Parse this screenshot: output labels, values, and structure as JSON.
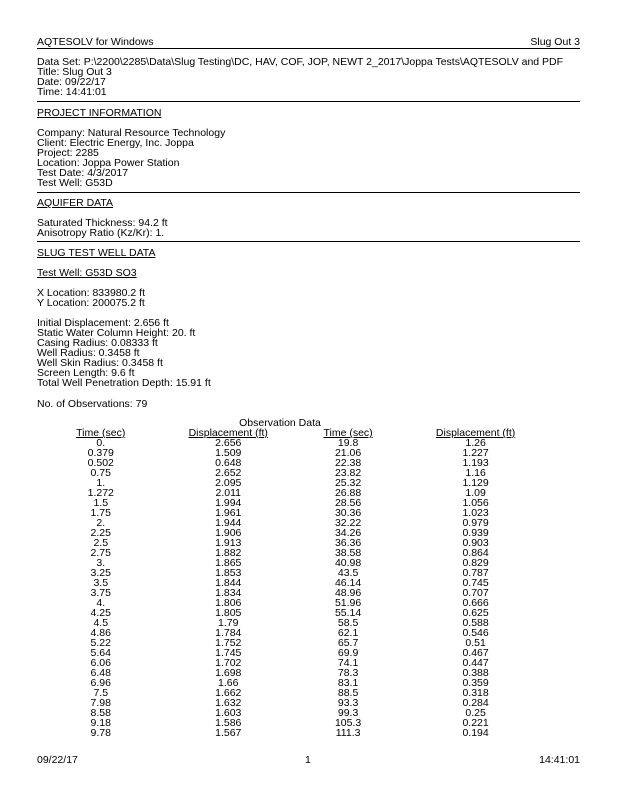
{
  "header": {
    "app": "AQTESOLV for Windows",
    "doc_title": "Slug Out 3"
  },
  "meta": [
    "Data Set:  P:\\2200\\2285\\Data\\Slug Testing\\DC, HAV, COF, JOP, NEWT 2_2017\\Joppa Tests\\AQTESOLV and PDF",
    "Title:  Slug Out 3",
    "Date:  09/22/17",
    "Time:  14:41:01"
  ],
  "project": {
    "heading": "PROJECT INFORMATION",
    "lines": [
      "Company:  Natural Resource Technology",
      "Client:  Electric Energy, Inc.   Joppa",
      "Project:  2285",
      "Location:  Joppa Power Station",
      "Test Date:  4/3/2017",
      "Test Well:  G53D"
    ]
  },
  "aquifer": {
    "heading": "AQUIFER DATA",
    "lines": [
      "Saturated Thickness:  94.2 ft",
      "Anisotropy Ratio (Kz/Kr):  1."
    ]
  },
  "slug": {
    "heading": "SLUG TEST WELL DATA",
    "test_well": "Test Well:  G53D SO3",
    "location": [
      "X Location:  833980.2 ft",
      "Y Location:  200075.2 ft"
    ],
    "params": [
      "Initial Displacement:  2.656 ft",
      "Static Water Column Height:  20. ft",
      "Casing Radius:  0.08333 ft",
      "Well Radius:  0.3458 ft",
      "Well Skin Radius:  0.3458 ft",
      "Screen Length:  9.6 ft",
      "Total Well Penetration Depth:  15.91 ft"
    ],
    "observations": "No. of Observations:  79"
  },
  "observation_table": {
    "title": "Observation Data",
    "headers": [
      "Time (sec)",
      "Displacement (ft)",
      "Time (sec)",
      "Displacement (ft)"
    ],
    "rows": [
      [
        "0.",
        "2.656",
        "19.8",
        "1.26"
      ],
      [
        "0.379",
        "1.509",
        "21.06",
        "1.227"
      ],
      [
        "0.502",
        "0.648",
        "22.38",
        "1.193"
      ],
      [
        "0.75",
        "2.652",
        "23.82",
        "1.16"
      ],
      [
        "1.",
        "2.095",
        "25.32",
        "1.129"
      ],
      [
        "1.272",
        "2.011",
        "26.88",
        "1.09"
      ],
      [
        "1.5",
        "1.994",
        "28.56",
        "1.056"
      ],
      [
        "1.75",
        "1.961",
        "30.36",
        "1.023"
      ],
      [
        "2.",
        "1.944",
        "32.22",
        "0.979"
      ],
      [
        "2.25",
        "1.906",
        "34.26",
        "0.939"
      ],
      [
        "2.5",
        "1.913",
        "36.36",
        "0.903"
      ],
      [
        "2.75",
        "1.882",
        "38.58",
        "0.864"
      ],
      [
        "3.",
        "1.865",
        "40.98",
        "0.829"
      ],
      [
        "3.25",
        "1.853",
        "43.5",
        "0.787"
      ],
      [
        "3.5",
        "1.844",
        "46.14",
        "0.745"
      ],
      [
        "3.75",
        "1.834",
        "48.96",
        "0.707"
      ],
      [
        "4.",
        "1.806",
        "51.96",
        "0.666"
      ],
      [
        "4.25",
        "1.805",
        "55.14",
        "0.625"
      ],
      [
        "4.5",
        "1.79",
        "58.5",
        "0.588"
      ],
      [
        "4.86",
        "1.784",
        "62.1",
        "0.546"
      ],
      [
        "5.22",
        "1.752",
        "65.7",
        "0.51"
      ],
      [
        "5.64",
        "1.745",
        "69.9",
        "0.467"
      ],
      [
        "6.06",
        "1.702",
        "74.1",
        "0.447"
      ],
      [
        "6.48",
        "1.698",
        "78.3",
        "0.388"
      ],
      [
        "6.96",
        "1.66",
        "83.1",
        "0.359"
      ],
      [
        "7.5",
        "1.662",
        "88.5",
        "0.318"
      ],
      [
        "7.98",
        "1.632",
        "93.3",
        "0.284"
      ],
      [
        "8.58",
        "1.603",
        "99.3",
        "0.25"
      ],
      [
        "9.18",
        "1.586",
        "105.3",
        "0.221"
      ],
      [
        "9.78",
        "1.567",
        "111.3",
        "0.194"
      ]
    ]
  },
  "footer": {
    "date": "09/22/17",
    "page": "1",
    "time": "14:41:01"
  }
}
